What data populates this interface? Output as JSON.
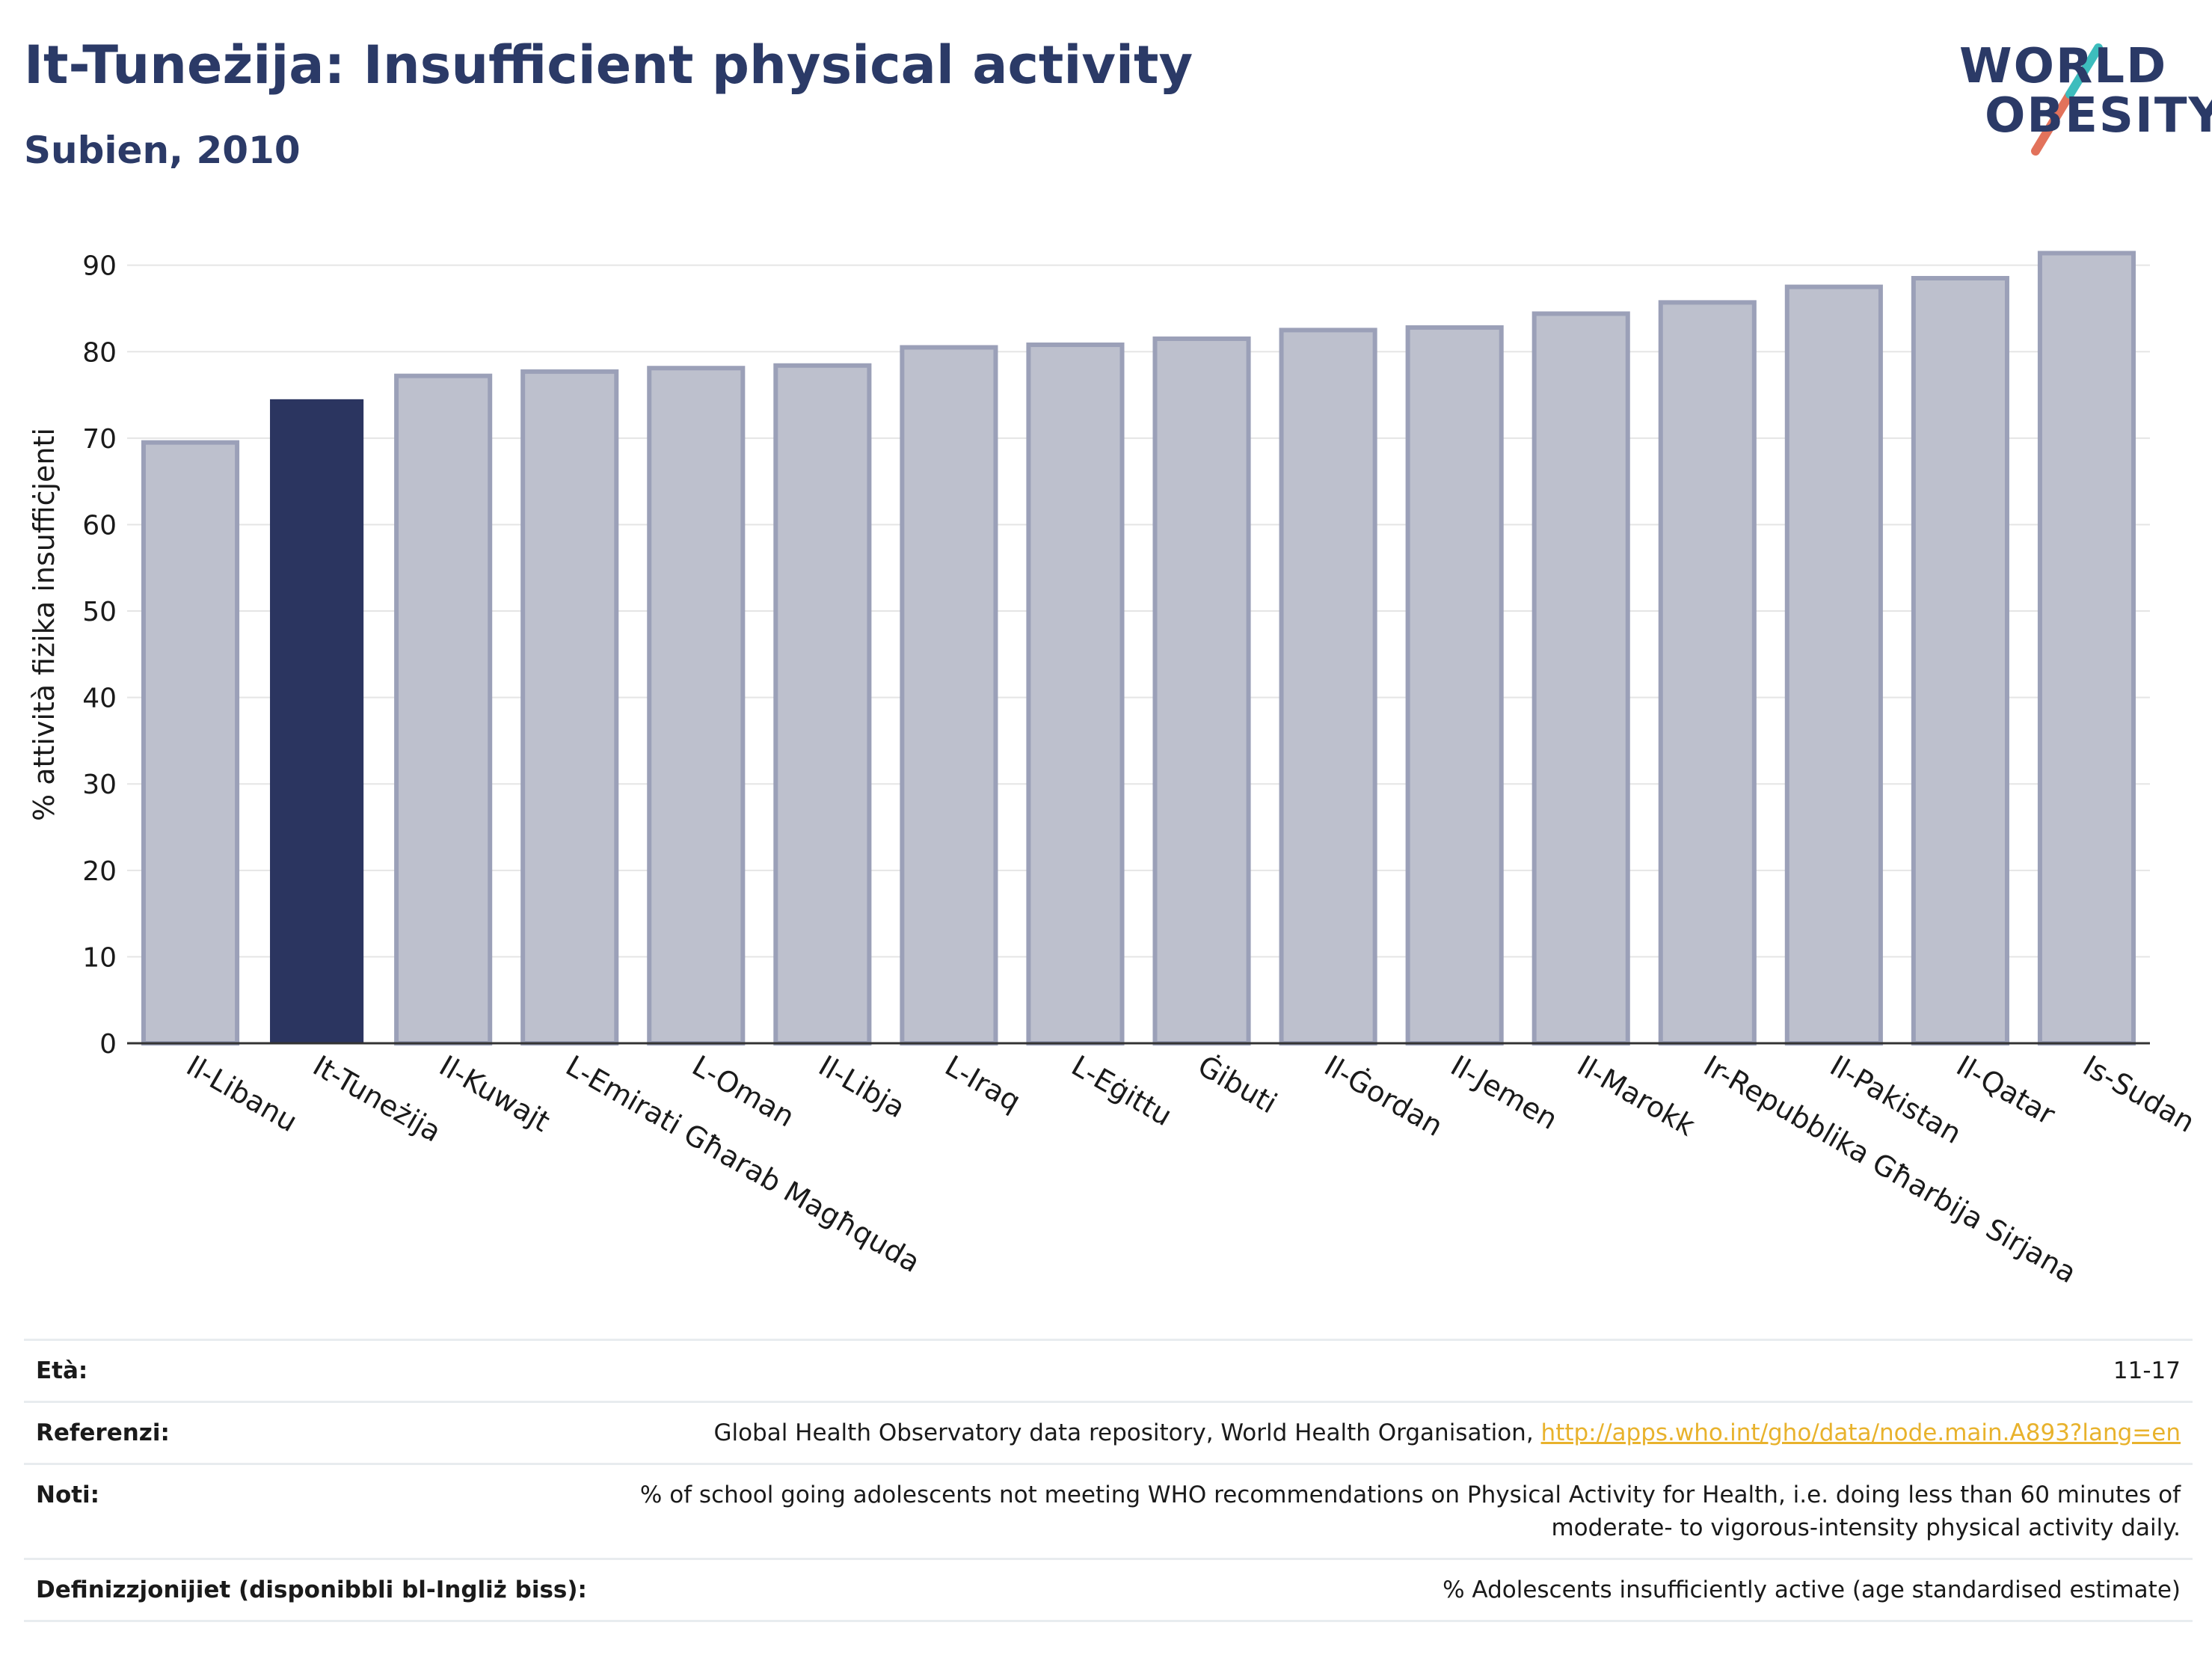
{
  "header": {
    "title": "It-Tuneżija: Insufficient physical activity",
    "subtitle": "Subien, 2010"
  },
  "logo": {
    "line1": "WORLD",
    "line2": "OBESITY"
  },
  "colors": {
    "highlight": "#2b3560",
    "default": "#bdc0cd",
    "default_stroke": "#9ba0b8",
    "accent": "#2b3a67"
  },
  "chart_data": {
    "type": "bar",
    "ylabel": "% attività fiżika insuffiċjenti",
    "ylim": [
      0,
      93
    ],
    "yticks": [
      0,
      10,
      20,
      30,
      40,
      50,
      60,
      70,
      80,
      90
    ],
    "grid": true,
    "highlight": "It-Tuneżija",
    "categories": [
      "Il-Libanu",
      "It-Tuneżija",
      "Il-Kuwajt",
      "L-Emirati Għarab Magħquda",
      "L-Oman",
      "Il-Libja",
      "L-Iraq",
      "L-Eġittu",
      "Ġibuti",
      "Il-Ġordan",
      "Il-Jemen",
      "Il-Marokk",
      "Ir-Repubblika Għarbija Sirjana",
      "Il-Pakistan",
      "Il-Qatar",
      "Is-Sudan"
    ],
    "values": [
      69.5,
      74.5,
      77.2,
      77.7,
      78.1,
      78.4,
      80.5,
      80.8,
      81.5,
      82.5,
      82.8,
      84.4,
      85.7,
      87.5,
      88.5,
      91.4
    ]
  },
  "footer": {
    "age_label": "Età:",
    "age_value": "11-17",
    "ref_label": "Referenzi:",
    "ref_text": "Global Health Observatory data repository, World Health Organisation, ",
    "ref_link": "http://apps.who.int/gho/data/node.main.A893?lang=en",
    "notes_label": "Noti:",
    "notes_text": "% of school going adolescents not meeting WHO recommendations on Physical Activity for Health, i.e. doing less than 60 minutes of moderate- to vigorous-intensity physical activity daily.",
    "def_label": "Definizzjonijiet (disponibbli bl-Ingliż biss):",
    "def_text": "% Adolescents insufficiently active (age standardised estimate)"
  }
}
